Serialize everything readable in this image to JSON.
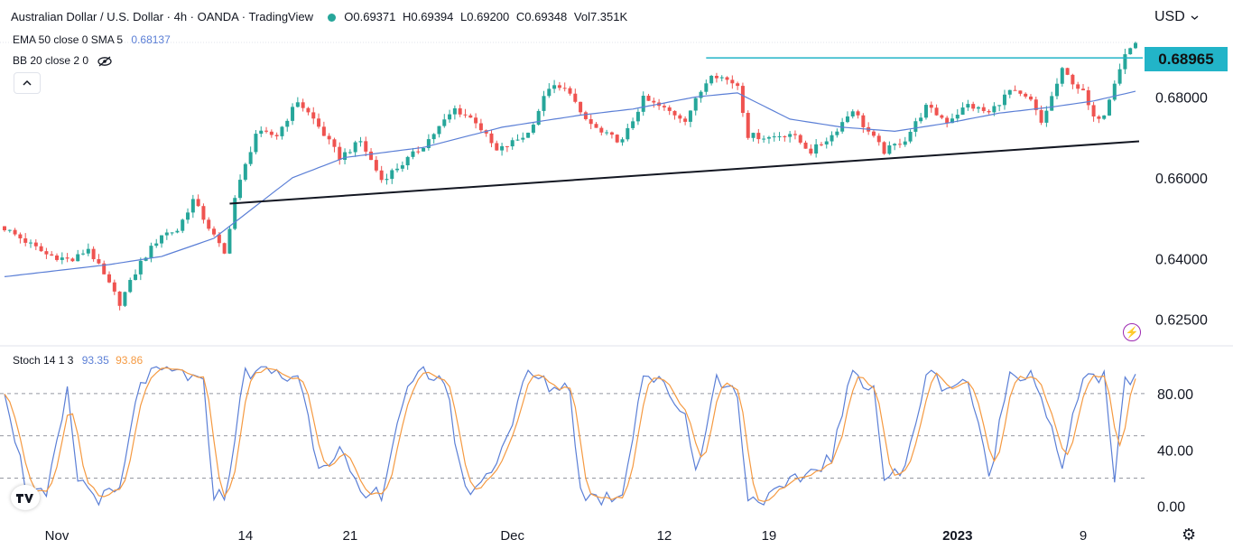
{
  "header": {
    "title": "Australian Dollar / U.S. Dollar · 4h · OANDA · TradingView",
    "ohlc": {
      "o_label": "O",
      "o": "0.69371",
      "h_label": "H",
      "h": "0.69394",
      "l_label": "L",
      "l": "0.69200",
      "c_label": "C",
      "c": "0.69348",
      "vol_label": "Vol",
      "vol": "7.351K"
    },
    "currency": "USD"
  },
  "indicators": {
    "ema_label": "EMA 50 close 0 SMA 5",
    "ema_value": "0.68137",
    "bb_label": "BB 20 close 2 0",
    "stoch_label": "Stoch 14 1 3",
    "stoch_k": "93.35",
    "stoch_d": "93.86"
  },
  "price_tag": "0.68965",
  "colors": {
    "up": "#26a69a",
    "down": "#ef5350",
    "ema": "#5b7fd6",
    "stoch_k": "#5b7fd6",
    "stoch_d": "#f59a42",
    "level": "#22b4c8",
    "trend": "#131722",
    "grid": "#f0f3fa"
  },
  "chart_data": [
    {
      "type": "candlestick",
      "title": "Australian Dollar / U.S. Dollar · 4h · OANDA · TradingView",
      "x_ticks": [
        "Nov",
        "14",
        "21",
        "Dec",
        "12",
        "19",
        "2023",
        "9"
      ],
      "y_ticks": [
        "0.68965",
        "0.68000",
        "0.66000",
        "0.64000",
        "0.62500"
      ],
      "ylim": [
        0.6195,
        0.6955
      ],
      "anchors": [
        {
          "i": 0,
          "v": 0.6475
        },
        {
          "i": 8,
          "v": 0.641
        },
        {
          "i": 13,
          "v": 0.6395
        },
        {
          "i": 16,
          "v": 0.6425
        },
        {
          "i": 20,
          "v": 0.6335
        },
        {
          "i": 22,
          "v": 0.629
        },
        {
          "i": 26,
          "v": 0.639
        },
        {
          "i": 30,
          "v": 0.646
        },
        {
          "i": 33,
          "v": 0.647
        },
        {
          "i": 36,
          "v": 0.6545
        },
        {
          "i": 42,
          "v": 0.641
        },
        {
          "i": 44,
          "v": 0.655
        },
        {
          "i": 48,
          "v": 0.671
        },
        {
          "i": 52,
          "v": 0.6705
        },
        {
          "i": 56,
          "v": 0.679
        },
        {
          "i": 59,
          "v": 0.6745
        },
        {
          "i": 64,
          "v": 0.665
        },
        {
          "i": 68,
          "v": 0.669
        },
        {
          "i": 72,
          "v": 0.6595
        },
        {
          "i": 76,
          "v": 0.6635
        },
        {
          "i": 80,
          "v": 0.668
        },
        {
          "i": 86,
          "v": 0.677
        },
        {
          "i": 90,
          "v": 0.674
        },
        {
          "i": 94,
          "v": 0.6665
        },
        {
          "i": 100,
          "v": 0.671
        },
        {
          "i": 104,
          "v": 0.6825
        },
        {
          "i": 108,
          "v": 0.6815
        },
        {
          "i": 110,
          "v": 0.6755
        },
        {
          "i": 114,
          "v": 0.671
        },
        {
          "i": 118,
          "v": 0.669
        },
        {
          "i": 122,
          "v": 0.6795
        },
        {
          "i": 126,
          "v": 0.677
        },
        {
          "i": 130,
          "v": 0.6745
        },
        {
          "i": 135,
          "v": 0.686
        },
        {
          "i": 140,
          "v": 0.683
        },
        {
          "i": 142,
          "v": 0.6705
        },
        {
          "i": 146,
          "v": 0.67
        },
        {
          "i": 150,
          "v": 0.671
        },
        {
          "i": 154,
          "v": 0.6665
        },
        {
          "i": 158,
          "v": 0.6705
        },
        {
          "i": 162,
          "v": 0.677
        },
        {
          "i": 164,
          "v": 0.673
        },
        {
          "i": 168,
          "v": 0.6665
        },
        {
          "i": 172,
          "v": 0.6695
        },
        {
          "i": 176,
          "v": 0.6775
        },
        {
          "i": 180,
          "v": 0.674
        },
        {
          "i": 184,
          "v": 0.678
        },
        {
          "i": 188,
          "v": 0.676
        },
        {
          "i": 192,
          "v": 0.6815
        },
        {
          "i": 196,
          "v": 0.679
        },
        {
          "i": 198,
          "v": 0.6735
        },
        {
          "i": 202,
          "v": 0.6865
        },
        {
          "i": 206,
          "v": 0.681
        },
        {
          "i": 208,
          "v": 0.6745
        },
        {
          "i": 210,
          "v": 0.676
        },
        {
          "i": 212,
          "v": 0.684
        },
        {
          "i": 214,
          "v": 0.6905
        },
        {
          "i": 216,
          "v": 0.6935
        }
      ],
      "ema_anchors": [
        {
          "i": 0,
          "v": 0.6355
        },
        {
          "i": 20,
          "v": 0.6385
        },
        {
          "i": 30,
          "v": 0.6405
        },
        {
          "i": 40,
          "v": 0.645
        },
        {
          "i": 45,
          "v": 0.65
        },
        {
          "i": 55,
          "v": 0.66
        },
        {
          "i": 65,
          "v": 0.665
        },
        {
          "i": 80,
          "v": 0.6675
        },
        {
          "i": 95,
          "v": 0.6725
        },
        {
          "i": 110,
          "v": 0.6755
        },
        {
          "i": 120,
          "v": 0.677
        },
        {
          "i": 132,
          "v": 0.68
        },
        {
          "i": 140,
          "v": 0.681
        },
        {
          "i": 150,
          "v": 0.6745
        },
        {
          "i": 160,
          "v": 0.6725
        },
        {
          "i": 170,
          "v": 0.6715
        },
        {
          "i": 180,
          "v": 0.6735
        },
        {
          "i": 190,
          "v": 0.676
        },
        {
          "i": 200,
          "v": 0.6775
        },
        {
          "i": 208,
          "v": 0.679
        },
        {
          "i": 216,
          "v": 0.6814
        }
      ],
      "level_line": {
        "value": 0.68965,
        "from_i": 134
      },
      "trend_line": {
        "from": {
          "i": 43,
          "v": 0.6536
        },
        "to": {
          "i": 216,
          "v": 0.669
        }
      }
    },
    {
      "type": "line",
      "title": "Stoch 14 1 3",
      "y_ticks": [
        "80.00",
        "40.00",
        "0.00"
      ],
      "ylim": [
        -6,
        103
      ],
      "bands": [
        80,
        50,
        20
      ],
      "k_anchors": [
        {
          "i": 0,
          "v": 85
        },
        {
          "i": 4,
          "v": 15
        },
        {
          "i": 8,
          "v": 5
        },
        {
          "i": 12,
          "v": 80
        },
        {
          "i": 14,
          "v": 20
        },
        {
          "i": 18,
          "v": 5
        },
        {
          "i": 22,
          "v": 10
        },
        {
          "i": 26,
          "v": 90
        },
        {
          "i": 30,
          "v": 95
        },
        {
          "i": 34,
          "v": 95
        },
        {
          "i": 38,
          "v": 85
        },
        {
          "i": 40,
          "v": 10
        },
        {
          "i": 42,
          "v": 5
        },
        {
          "i": 46,
          "v": 95
        },
        {
          "i": 50,
          "v": 98
        },
        {
          "i": 54,
          "v": 90
        },
        {
          "i": 56,
          "v": 95
        },
        {
          "i": 60,
          "v": 30
        },
        {
          "i": 64,
          "v": 40
        },
        {
          "i": 68,
          "v": 5
        },
        {
          "i": 72,
          "v": 10
        },
        {
          "i": 76,
          "v": 75
        },
        {
          "i": 80,
          "v": 95
        },
        {
          "i": 84,
          "v": 90
        },
        {
          "i": 88,
          "v": 10
        },
        {
          "i": 92,
          "v": 20
        },
        {
          "i": 96,
          "v": 50
        },
        {
          "i": 100,
          "v": 95
        },
        {
          "i": 104,
          "v": 85
        },
        {
          "i": 108,
          "v": 85
        },
        {
          "i": 110,
          "v": 10
        },
        {
          "i": 114,
          "v": 5
        },
        {
          "i": 118,
          "v": 10
        },
        {
          "i": 122,
          "v": 95
        },
        {
          "i": 126,
          "v": 85
        },
        {
          "i": 130,
          "v": 65
        },
        {
          "i": 132,
          "v": 25
        },
        {
          "i": 136,
          "v": 90
        },
        {
          "i": 140,
          "v": 80
        },
        {
          "i": 142,
          "v": 5
        },
        {
          "i": 146,
          "v": 5
        },
        {
          "i": 150,
          "v": 15
        },
        {
          "i": 154,
          "v": 25
        },
        {
          "i": 158,
          "v": 35
        },
        {
          "i": 162,
          "v": 95
        },
        {
          "i": 166,
          "v": 85
        },
        {
          "i": 168,
          "v": 20
        },
        {
          "i": 172,
          "v": 25
        },
        {
          "i": 176,
          "v": 95
        },
        {
          "i": 180,
          "v": 85
        },
        {
          "i": 184,
          "v": 90
        },
        {
          "i": 188,
          "v": 20
        },
        {
          "i": 192,
          "v": 95
        },
        {
          "i": 196,
          "v": 95
        },
        {
          "i": 198,
          "v": 80
        },
        {
          "i": 202,
          "v": 25
        },
        {
          "i": 206,
          "v": 95
        },
        {
          "i": 210,
          "v": 90
        },
        {
          "i": 212,
          "v": 15
        },
        {
          "i": 214,
          "v": 90
        },
        {
          "i": 216,
          "v": 93
        }
      ]
    }
  ]
}
